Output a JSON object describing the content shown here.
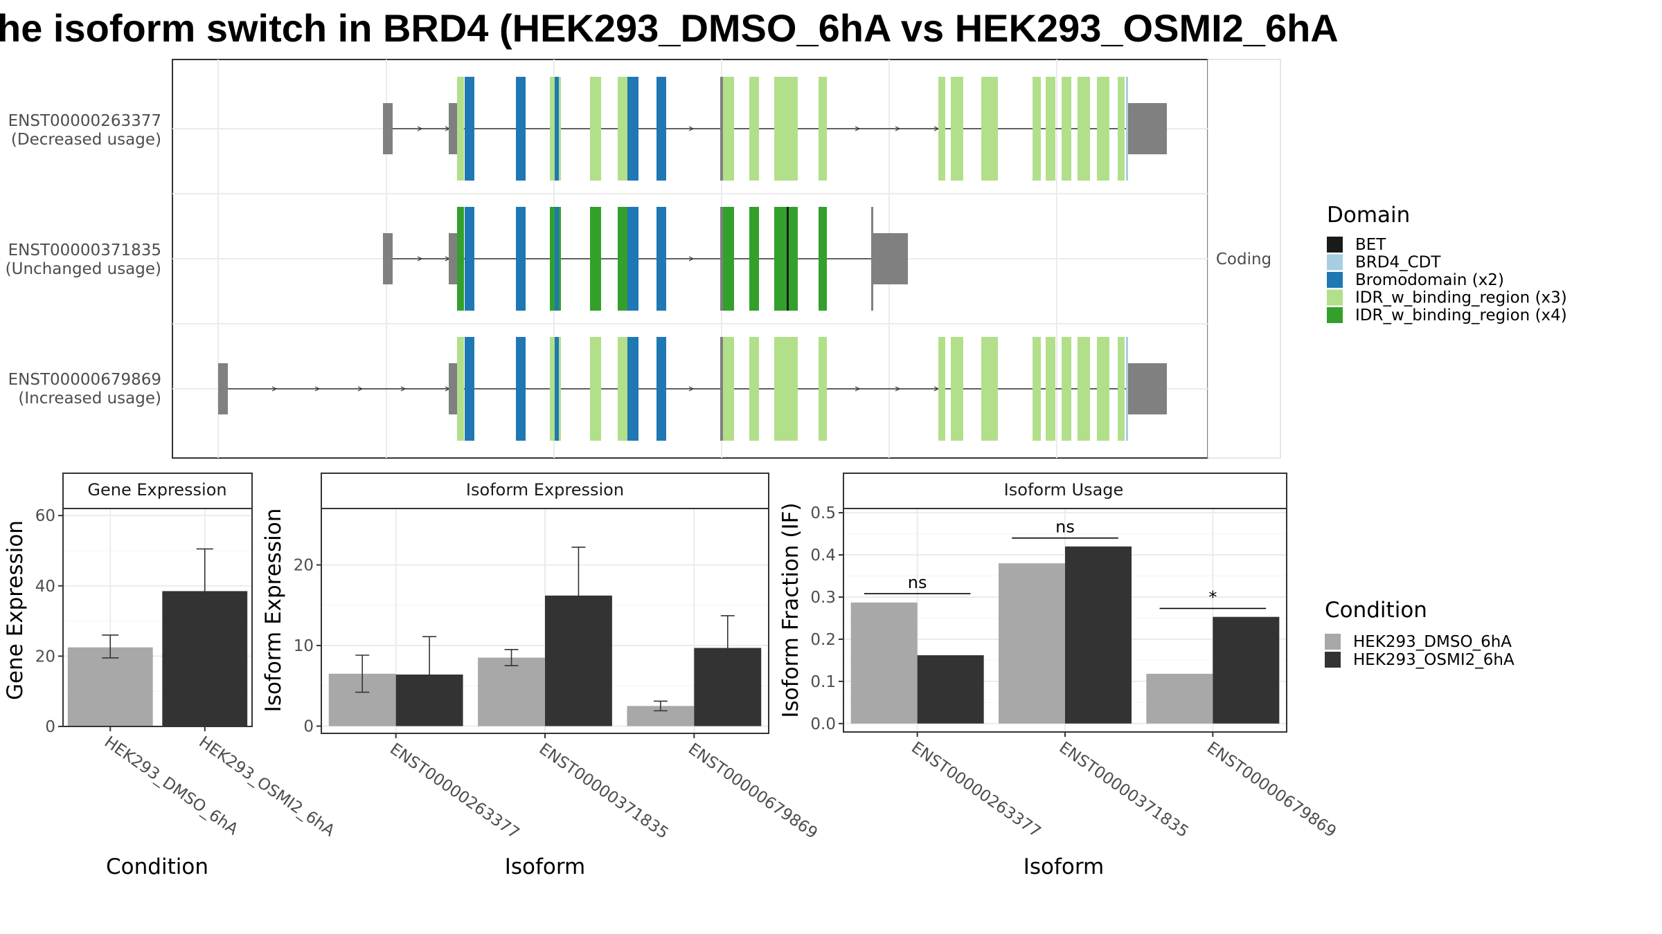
{
  "title": "he isoform switch in BRD4 (HEK293_DMSO_6hA vs HEK293_OSMI2_6hA",
  "colors": {
    "dmso": "#a8a8a8",
    "osmi": "#333333",
    "utr": "#808080",
    "BET": "#1a1a1a",
    "BRD4_CDT": "#a6cee3",
    "Bromodomain (x2)": "#1f78b4",
    "IDR_w_binding_region (x3)": "#b2df8a",
    "IDR_w_binding_region (x4)": "#33a02c"
  },
  "structure": {
    "strip_label": "Coding",
    "isoforms": [
      {
        "id": "ENST00000263377",
        "usage": "(Decreased usage)"
      },
      {
        "id": "ENST00000371835",
        "usage": "(Unchanged usage)"
      },
      {
        "id": "ENST00000679869",
        "usage": "(Increased usage)"
      }
    ]
  },
  "domain_legend": {
    "title": "Domain",
    "items": [
      "BET",
      "BRD4_CDT",
      "Bromodomain (x2)",
      "IDR_w_binding_region (x3)",
      "IDR_w_binding_region (x4)"
    ]
  },
  "condition_legend": {
    "title": "Condition",
    "items": [
      "HEK293_DMSO_6hA",
      "HEK293_OSMI2_6hA"
    ]
  },
  "chart_data": [
    {
      "type": "bar",
      "title": "Gene Expression",
      "xlabel": "Condition",
      "ylabel": "Gene Expression",
      "categories": [
        "HEK293_DMSO_6hA",
        "HEK293_OSMI2_6hA"
      ],
      "values": [
        22.5,
        38.5
      ],
      "error_low": [
        19.5,
        26.5
      ],
      "error_high": [
        26,
        50.5
      ],
      "ylim": [
        0,
        62
      ],
      "yticks": [
        0,
        20,
        40,
        60
      ]
    },
    {
      "type": "bar",
      "title": "Isoform Expression",
      "xlabel": "Isoform",
      "ylabel": "Isoform Expression",
      "categories": [
        "ENST00000263377",
        "ENST00000371835",
        "ENST00000679869"
      ],
      "series": [
        {
          "name": "HEK293_DMSO_6hA",
          "values": [
            6.5,
            8.5,
            2.5
          ],
          "error_low": [
            4.2,
            7.5,
            1.9
          ],
          "error_high": [
            8.8,
            9.5,
            3.1
          ]
        },
        {
          "name": "HEK293_OSMI2_6hA",
          "values": [
            6.4,
            16.2,
            9.7
          ],
          "error_low": [
            1.8,
            10.3,
            5.8
          ],
          "error_high": [
            11.1,
            22.2,
            13.7
          ]
        }
      ],
      "ylim": [
        -0.9,
        27
      ],
      "yticks": [
        0,
        10,
        20
      ]
    },
    {
      "type": "bar",
      "title": "Isoform Usage",
      "xlabel": "Isoform",
      "ylabel": "Isoform Fraction (IF)",
      "categories": [
        "ENST00000263377",
        "ENST00000371835",
        "ENST00000679869"
      ],
      "series": [
        {
          "name": "HEK293_DMSO_6hA",
          "values": [
            0.287,
            0.38,
            0.118
          ]
        },
        {
          "name": "HEK293_OSMI2_6hA",
          "values": [
            0.162,
            0.42,
            0.253
          ]
        }
      ],
      "significance": [
        {
          "label": "ns",
          "y": 0.308
        },
        {
          "label": "ns",
          "y": 0.44
        },
        {
          "label": "*",
          "y": 0.273
        }
      ],
      "ylim": [
        -0.02,
        0.51
      ],
      "yticks": [
        0.0,
        0.1,
        0.2,
        0.3,
        0.4,
        0.5
      ],
      "ytick_labels": [
        "0.0",
        "0.1",
        "0.2",
        "0.3",
        "0.4",
        "0.5"
      ]
    }
  ]
}
